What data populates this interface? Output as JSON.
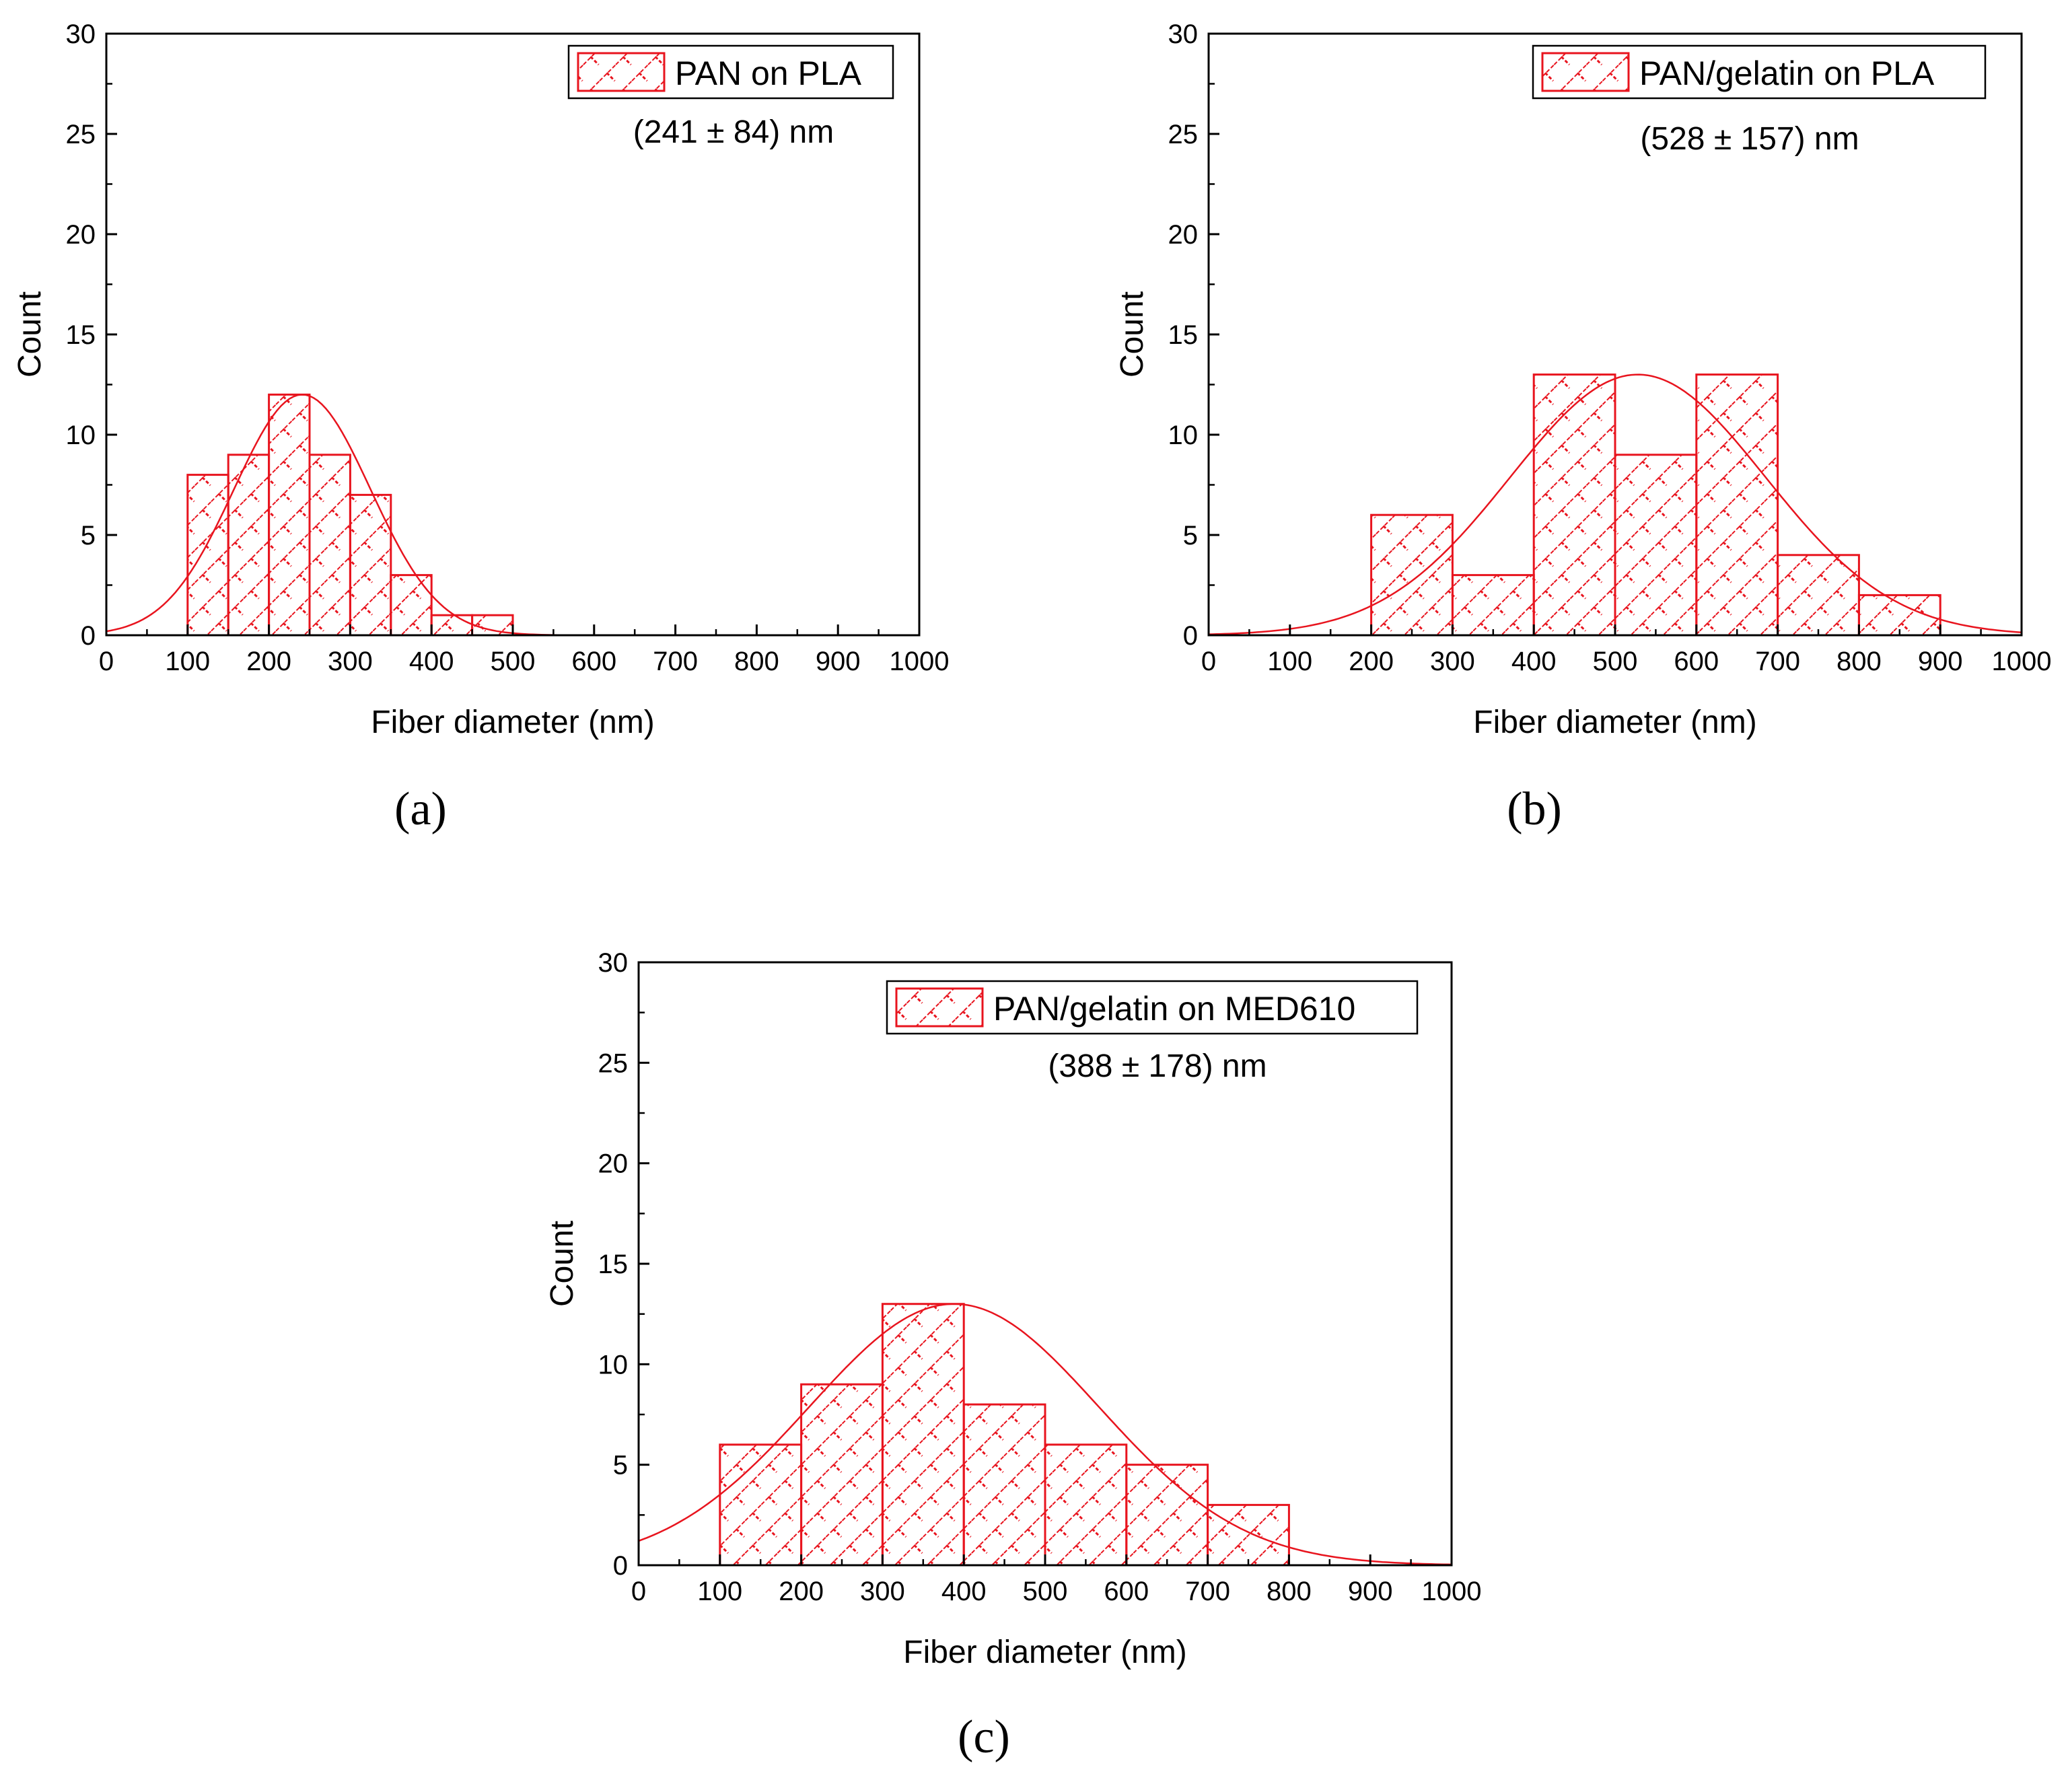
{
  "figure": {
    "colors": {
      "bar": "#e8141e",
      "axis": "#000000",
      "background": "#ffffff"
    }
  },
  "chart_data": [
    {
      "id": "a",
      "type": "bar",
      "panel_label": "(a)",
      "xlabel": "Fiber diameter (nm)",
      "ylabel": "Count",
      "xlim": [
        0,
        1000
      ],
      "ylim": [
        0,
        30
      ],
      "xticks": [
        "0",
        "100",
        "200",
        "300",
        "400",
        "500",
        "600",
        "700",
        "800",
        "900",
        "1000"
      ],
      "yticks": [
        "0",
        "5",
        "10",
        "15",
        "20",
        "25",
        "30"
      ],
      "bin_width": 50,
      "bins": [
        100,
        150,
        200,
        250,
        300,
        350,
        400,
        450
      ],
      "values": [
        8,
        9,
        12,
        9,
        7,
        3,
        1,
        1
      ],
      "legend": "PAN on PLA",
      "annotation": "(241 ± 84) nm",
      "fit": {
        "type": "gaussian",
        "mean": 241,
        "sd": 84,
        "peak": 12
      }
    },
    {
      "id": "b",
      "type": "bar",
      "panel_label": "(b)",
      "xlabel": "Fiber diameter (nm)",
      "ylabel": "Count",
      "xlim": [
        0,
        1000
      ],
      "ylim": [
        0,
        30
      ],
      "xticks": [
        "0",
        "100",
        "200",
        "300",
        "400",
        "500",
        "600",
        "700",
        "800",
        "900",
        "1000"
      ],
      "yticks": [
        "0",
        "5",
        "10",
        "15",
        "20",
        "25",
        "30"
      ],
      "bin_width": 100,
      "bins": [
        200,
        300,
        400,
        500,
        600,
        700,
        800
      ],
      "values": [
        6,
        3,
        13,
        9,
        13,
        4,
        2
      ],
      "legend": "PAN/gelatin on PLA",
      "annotation": "(528 ± 157) nm",
      "fit": {
        "type": "gaussian",
        "mean": 528,
        "sd": 157,
        "peak": 13
      }
    },
    {
      "id": "c",
      "type": "bar",
      "panel_label": "(c)",
      "xlabel": "Fiber diameter (nm)",
      "ylabel": "Count",
      "xlim": [
        0,
        1000
      ],
      "ylim": [
        0,
        30
      ],
      "xticks": [
        "0",
        "100",
        "200",
        "300",
        "400",
        "500",
        "600",
        "700",
        "800",
        "900",
        "1000"
      ],
      "yticks": [
        "0",
        "5",
        "10",
        "15",
        "20",
        "25",
        "30"
      ],
      "bin_width": 100,
      "bins": [
        100,
        200,
        300,
        400,
        500,
        600,
        700
      ],
      "values": [
        6,
        9,
        13,
        8,
        6,
        5,
        3
      ],
      "legend": "PAN/gelatin on MED610",
      "annotation": "(388 ± 178) nm",
      "fit": {
        "type": "gaussian",
        "mean": 388,
        "sd": 178,
        "peak": 13
      }
    }
  ]
}
